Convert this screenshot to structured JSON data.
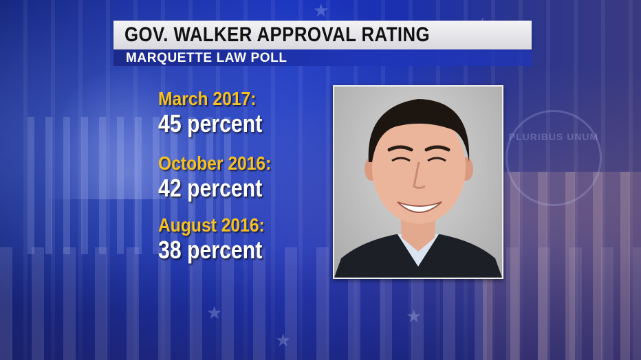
{
  "header": {
    "title": "GOV. WALKER APPROVAL RATING",
    "subtitle": "MARQUETTE LAW POLL"
  },
  "ratings": [
    {
      "date": "March 2017:",
      "value": "45 percent"
    },
    {
      "date": "October 2016:",
      "value": "42 percent"
    },
    {
      "date": "August 2016:",
      "value": "38 percent"
    }
  ],
  "background": {
    "seal_text": "PLURIBUS UNUM"
  },
  "colors": {
    "accent_yellow": "#f5c021",
    "background_blue": "#1c35c0",
    "title_bar": "#e8e8ec"
  }
}
